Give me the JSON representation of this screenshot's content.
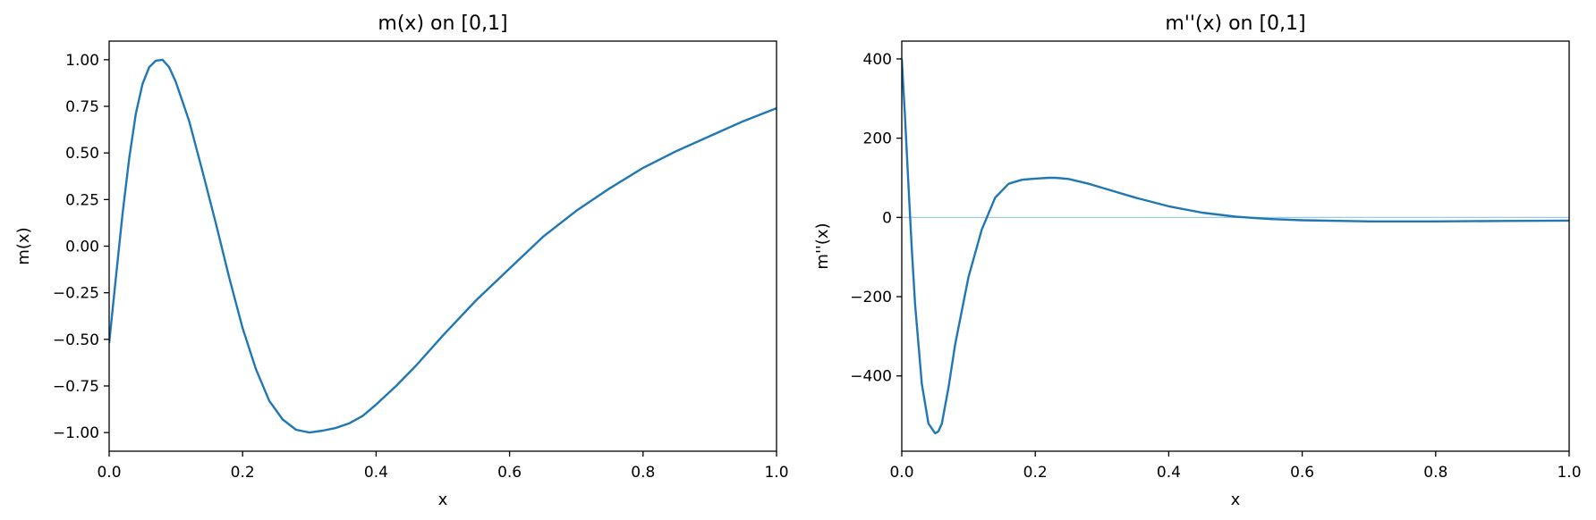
{
  "chart_data": [
    {
      "type": "line",
      "title": "m(x) on [0,1]",
      "xlabel": "x",
      "ylabel": "m(x)",
      "xlim": [
        0,
        1
      ],
      "ylim": [
        -1.1,
        1.1
      ],
      "xticks": [
        0.0,
        0.2,
        0.4,
        0.6,
        0.8,
        1.0
      ],
      "xtick_labels": [
        "0.0",
        "0.2",
        "0.4",
        "0.6",
        "0.8",
        "1.0"
      ],
      "yticks": [
        1.0,
        0.75,
        0.5,
        0.25,
        0.0,
        -0.25,
        -0.5,
        -0.75,
        -1.0
      ],
      "ytick_labels": [
        "1.00",
        "0.75",
        "0.50",
        "0.25",
        "0.00",
        "−0.25",
        "−0.50",
        "−0.75",
        "−1.00"
      ],
      "grid": false,
      "series": [
        {
          "color": "#1f77b4",
          "x": [
            0.0,
            0.01,
            0.02,
            0.03,
            0.04,
            0.05,
            0.06,
            0.07,
            0.08,
            0.09,
            0.1,
            0.12,
            0.14,
            0.16,
            0.18,
            0.2,
            0.22,
            0.24,
            0.26,
            0.28,
            0.3,
            0.32,
            0.34,
            0.36,
            0.38,
            0.4,
            0.43,
            0.46,
            0.5,
            0.55,
            0.6,
            0.65,
            0.7,
            0.75,
            0.8,
            0.85,
            0.9,
            0.95,
            1.0
          ],
          "y": [
            -0.52,
            -0.17,
            0.17,
            0.47,
            0.71,
            0.87,
            0.96,
            0.995,
            1.0,
            0.96,
            0.88,
            0.67,
            0.4,
            0.12,
            -0.17,
            -0.44,
            -0.66,
            -0.83,
            -0.93,
            -0.985,
            -1.0,
            -0.99,
            -0.975,
            -0.95,
            -0.91,
            -0.85,
            -0.75,
            -0.64,
            -0.48,
            -0.29,
            -0.12,
            0.05,
            0.19,
            0.31,
            0.42,
            0.51,
            0.59,
            0.67,
            0.74
          ]
        }
      ]
    },
    {
      "type": "line",
      "title": "m''(x) on [0,1]",
      "xlabel": "x",
      "ylabel": "m''(x)",
      "xlim": [
        0,
        1
      ],
      "ylim": [
        -590,
        445
      ],
      "xticks": [
        0.0,
        0.2,
        0.4,
        0.6,
        0.8,
        1.0
      ],
      "xtick_labels": [
        "0.0",
        "0.2",
        "0.4",
        "0.6",
        "0.8",
        "1.0"
      ],
      "yticks": [
        400,
        200,
        0,
        -200,
        -400
      ],
      "ytick_labels": [
        "400",
        "200",
        "0",
        "−200",
        "−400"
      ],
      "grid": false,
      "reference_line": {
        "y": 0,
        "color": "#9ecae1"
      },
      "series": [
        {
          "color": "#1f77b4",
          "x": [
            0.0,
            0.005,
            0.01,
            0.015,
            0.02,
            0.03,
            0.04,
            0.05,
            0.055,
            0.06,
            0.07,
            0.08,
            0.1,
            0.12,
            0.14,
            0.16,
            0.18,
            0.2,
            0.22,
            0.23,
            0.25,
            0.28,
            0.3,
            0.35,
            0.4,
            0.45,
            0.5,
            0.55,
            0.6,
            0.7,
            0.8,
            0.9,
            1.0
          ],
          "y": [
            400,
            250,
            80,
            -80,
            -220,
            -420,
            -520,
            -545,
            -540,
            -520,
            -430,
            -320,
            -150,
            -30,
            50,
            85,
            95,
            98,
            100,
            100,
            97,
            85,
            75,
            50,
            28,
            12,
            2,
            -4,
            -7,
            -10,
            -10,
            -9,
            -8
          ]
        }
      ]
    }
  ]
}
